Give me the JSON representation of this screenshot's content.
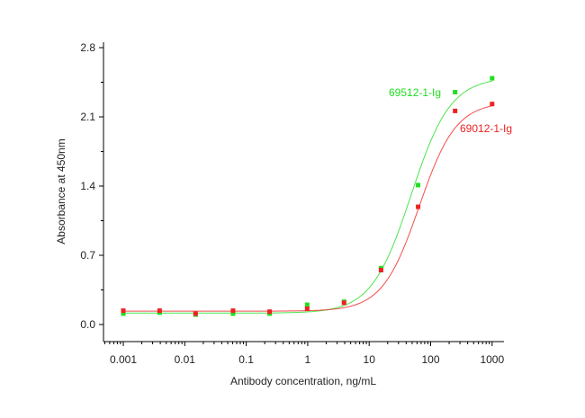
{
  "chart_data": {
    "type": "scatter",
    "title": "",
    "xlabel": "Antibody concentration, ng/mL",
    "ylabel": "Absorbance at 450nm",
    "xscale": "log",
    "xlim": [
      0.0006,
      1600
    ],
    "ylim": [
      -0.18,
      2.85
    ],
    "xticks": [
      0.001,
      0.01,
      0.1,
      1,
      10,
      100,
      1000
    ],
    "xtick_labels": [
      "0.001",
      "0.01",
      "0.1",
      "1",
      "10",
      "100",
      "1000"
    ],
    "yticks": [
      0.0,
      0.7,
      1.4,
      2.1,
      2.8
    ],
    "ytick_labels": [
      "0.0",
      "0.7",
      "1.4",
      "2.1",
      "2.8"
    ],
    "grid": false,
    "x": [
      0.001,
      0.0039,
      0.015,
      0.061,
      0.24,
      0.98,
      3.9,
      15.6,
      62.5,
      250,
      1000
    ],
    "series": [
      {
        "name": "69512-1-Ig",
        "color": "#22dd22",
        "values": [
          0.11,
          0.12,
          0.1,
          0.11,
          0.11,
          0.2,
          0.23,
          0.57,
          1.41,
          2.35,
          2.49
        ],
        "fit": {
          "bottom": 0.115,
          "top": 2.5,
          "ec50": 48,
          "hill": 1.35
        }
      },
      {
        "name": "69012-1-Ig",
        "color": "#ee2222",
        "values": [
          0.14,
          0.14,
          0.11,
          0.14,
          0.13,
          0.16,
          0.22,
          0.55,
          1.19,
          2.16,
          2.23
        ],
        "fit": {
          "bottom": 0.135,
          "top": 2.25,
          "ec50": 65,
          "hill": 1.45
        }
      }
    ]
  }
}
